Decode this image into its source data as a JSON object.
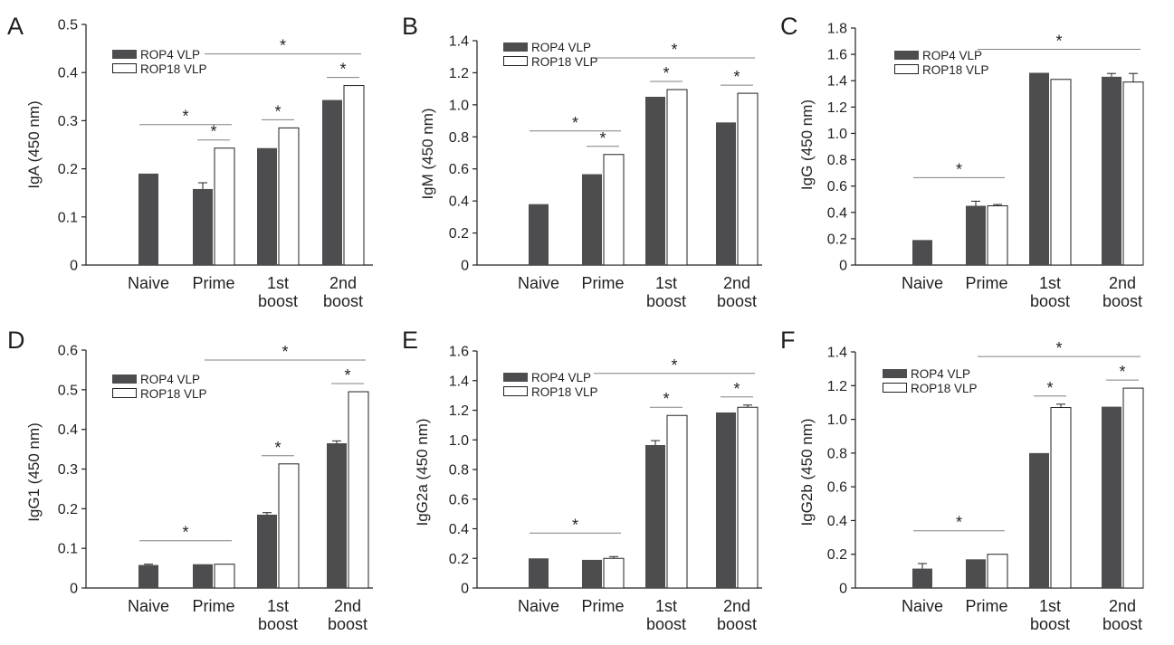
{
  "colors": {
    "rop4": "#4d4d4f",
    "rop18": "#ffffff",
    "axis": "#231f20",
    "sig_line": "#808080"
  },
  "chart_data": [
    {
      "panel": "A",
      "type": "bar",
      "ylabel": "IgA (450 nm)",
      "ylim": [
        0,
        0.5
      ],
      "yticks": [
        0,
        0.1,
        0.2,
        0.3,
        0.4,
        0.5
      ],
      "ytick_labels": [
        "0",
        "0.1",
        "0.2",
        "0.3",
        "0.4",
        "0.5"
      ],
      "categories": [
        "Naive",
        "Prime",
        "1st boost",
        "2nd boost"
      ],
      "legend": [
        "ROP4 VLP",
        "ROP18 VLP"
      ],
      "series": [
        {
          "name": "ROP4 VLP",
          "values": [
            0.19,
            0.158,
            0.243,
            0.343
          ],
          "errors": [
            0,
            0.013,
            0,
            0
          ]
        },
        {
          "name": "ROP18 VLP",
          "values": [
            null,
            0.243,
            0.285,
            0.373
          ],
          "errors": [
            null,
            0,
            0,
            0
          ]
        }
      ],
      "significance": [
        {
          "from": "Naive",
          "to": "Prime",
          "label": "*"
        },
        {
          "from": "Prime",
          "to": "Prime",
          "label": "*",
          "within": true
        },
        {
          "from": "1st boost",
          "to": "1st boost",
          "label": "*",
          "within": true
        },
        {
          "from": "2nd boost",
          "to": "2nd boost",
          "label": "*",
          "within": true
        },
        {
          "from": "Prime",
          "to": "2nd boost",
          "label": "*"
        }
      ]
    },
    {
      "panel": "B",
      "type": "bar",
      "ylabel": "IgM (450 nm)",
      "ylim": [
        0,
        1.4
      ],
      "yticks": [
        0,
        0.2,
        0.4,
        0.6,
        0.8,
        1.0,
        1.2,
        1.4
      ],
      "ytick_labels": [
        "0",
        "0.2",
        "0.4",
        "0.6",
        "0.8",
        "1.0",
        "1.2",
        "1.4"
      ],
      "categories": [
        "Naive",
        "Prime",
        "1st boost",
        "2nd boost"
      ],
      "legend": [
        "ROP4 VLP",
        "ROP18 VLP"
      ],
      "series": [
        {
          "name": "ROP4 VLP",
          "values": [
            0.38,
            0.567,
            1.05,
            0.89
          ],
          "errors": [
            0,
            0,
            0,
            0
          ]
        },
        {
          "name": "ROP18 VLP",
          "values": [
            null,
            0.69,
            1.095,
            1.072
          ],
          "errors": [
            null,
            0,
            0,
            0
          ]
        }
      ],
      "significance": [
        {
          "from": "Naive",
          "to": "Prime",
          "label": "*"
        },
        {
          "from": "Prime",
          "to": "Prime",
          "label": "*",
          "within": true
        },
        {
          "from": "1st boost",
          "to": "1st boost",
          "label": "*",
          "within": true
        },
        {
          "from": "2nd boost",
          "to": "2nd boost",
          "label": "*",
          "within": true
        },
        {
          "from": "Prime",
          "to": "2nd boost",
          "label": "*"
        }
      ]
    },
    {
      "panel": "C",
      "type": "bar",
      "ylabel": "IgG (450 nm)",
      "ylim": [
        0,
        1.8
      ],
      "yticks": [
        0,
        0.2,
        0.4,
        0.6,
        0.8,
        1.0,
        1.2,
        1.4,
        1.6,
        1.8
      ],
      "ytick_labels": [
        "0",
        "0.2",
        "0.4",
        "0.6",
        "0.8",
        "1.0",
        "1.2",
        "1.4",
        "1.6",
        "1.8"
      ],
      "categories": [
        "Naive",
        "Prime",
        "1st boost",
        "2nd boost"
      ],
      "legend": [
        "ROP4 VLP",
        "ROP18 VLP"
      ],
      "series": [
        {
          "name": "ROP4 VLP",
          "values": [
            0.19,
            0.45,
            1.46,
            1.43
          ],
          "errors": [
            0,
            0.035,
            0,
            0.025
          ]
        },
        {
          "name": "ROP18 VLP",
          "values": [
            null,
            0.45,
            1.41,
            1.39
          ],
          "errors": [
            null,
            0.01,
            0,
            0.065
          ]
        }
      ],
      "significance": [
        {
          "from": "Naive",
          "to": "Prime",
          "label": "*"
        },
        {
          "from": "Prime",
          "to": "2nd boost",
          "label": "*"
        }
      ]
    },
    {
      "panel": "D",
      "type": "bar",
      "ylabel": "IgG1 (450 nm)",
      "ylim": [
        0,
        0.6
      ],
      "yticks": [
        0,
        0.1,
        0.2,
        0.3,
        0.4,
        0.5,
        0.6
      ],
      "ytick_labels": [
        "0",
        "0.1",
        "0.2",
        "0.3",
        "0.4",
        "0.5",
        "0.6"
      ],
      "categories": [
        "Naive",
        "Prime",
        "1st boost",
        "2nd boost"
      ],
      "legend": [
        "ROP4 VLP",
        "ROP18 VLP"
      ],
      "series": [
        {
          "name": "ROP4 VLP",
          "values": [
            0.058,
            0.06,
            0.185,
            0.365
          ],
          "errors": [
            0.002,
            0,
            0.005,
            0.006
          ]
        },
        {
          "name": "ROP18 VLP",
          "values": [
            null,
            0.06,
            0.313,
            0.495
          ],
          "errors": [
            null,
            0,
            0,
            0
          ]
        }
      ],
      "significance": [
        {
          "from": "Naive",
          "to": "Prime",
          "label": "*"
        },
        {
          "from": "1st boost",
          "to": "1st boost",
          "label": "*",
          "within": true
        },
        {
          "from": "2nd boost",
          "to": "2nd boost",
          "label": "*",
          "within": true
        },
        {
          "from": "Prime",
          "to": "2nd boost",
          "label": "*"
        }
      ]
    },
    {
      "panel": "E",
      "type": "bar",
      "ylabel": "IgG2a (450 nm)",
      "ylim": [
        0,
        1.6
      ],
      "yticks": [
        0,
        0.2,
        0.4,
        0.6,
        0.8,
        1.0,
        1.2,
        1.4,
        1.6
      ],
      "ytick_labels": [
        "0",
        "0.2",
        "0.4",
        "0.6",
        "0.8",
        "1.0",
        "1.2",
        "1.4",
        "1.6"
      ],
      "categories": [
        "Naive",
        "Prime",
        "1st boost",
        "2nd boost"
      ],
      "legend": [
        "ROP4 VLP",
        "ROP18 VLP"
      ],
      "series": [
        {
          "name": "ROP4 VLP",
          "values": [
            0.2,
            0.19,
            0.965,
            1.185
          ],
          "errors": [
            0,
            0,
            0.03,
            0
          ]
        },
        {
          "name": "ROP18 VLP",
          "values": [
            null,
            0.2,
            1.165,
            1.22
          ],
          "errors": [
            null,
            0.012,
            0,
            0.015
          ]
        }
      ],
      "significance": [
        {
          "from": "Naive",
          "to": "Prime",
          "label": "*"
        },
        {
          "from": "1st boost",
          "to": "1st boost",
          "label": "*",
          "within": true
        },
        {
          "from": "2nd boost",
          "to": "2nd boost",
          "label": "*",
          "within": true
        },
        {
          "from": "Prime",
          "to": "2nd boost",
          "label": "*"
        }
      ]
    },
    {
      "panel": "F",
      "type": "bar",
      "ylabel": "IgG2b (450 nm)",
      "ylim": [
        0,
        1.4
      ],
      "yticks": [
        0,
        0.2,
        0.4,
        0.6,
        0.8,
        1.0,
        1.2,
        1.4
      ],
      "ytick_labels": [
        "0",
        "0.2",
        "0.4",
        "0.6",
        "0.8",
        "1.0",
        "1.2",
        "1.4"
      ],
      "categories": [
        "Naive",
        "Prime",
        "1st boost",
        "2nd boost"
      ],
      "legend": [
        "ROP4 VLP",
        "ROP18 VLP"
      ],
      "series": [
        {
          "name": "ROP4 VLP",
          "values": [
            0.115,
            0.17,
            0.8,
            1.075
          ],
          "errors": [
            0.03,
            0,
            0,
            0
          ]
        },
        {
          "name": "ROP18 VLP",
          "values": [
            null,
            0.2,
            1.07,
            1.185
          ],
          "errors": [
            null,
            0,
            0.02,
            0
          ]
        }
      ],
      "significance": [
        {
          "from": "Naive",
          "to": "Prime",
          "label": "*"
        },
        {
          "from": "1st boost",
          "to": "1st boost",
          "label": "*",
          "within": true
        },
        {
          "from": "2nd boost",
          "to": "2nd boost",
          "label": "*",
          "within": true
        },
        {
          "from": "Prime",
          "to": "2nd boost",
          "label": "*"
        }
      ]
    }
  ]
}
